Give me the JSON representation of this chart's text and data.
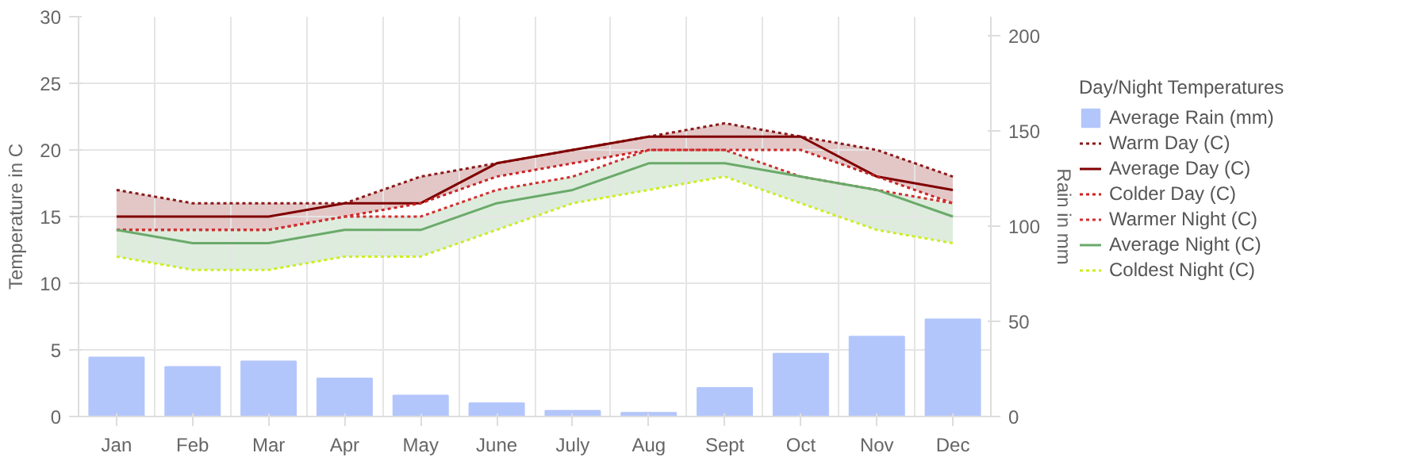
{
  "chart_data": {
    "type": "line",
    "categories": [
      "Jan",
      "Feb",
      "Mar",
      "Apr",
      "May",
      "June",
      "July",
      "Aug",
      "Sept",
      "Oct",
      "Nov",
      "Dec"
    ],
    "ylabel": "Temperature in C",
    "y2label": "Rain in mm",
    "legend_title": "Day/Night Temperatures",
    "ylim": [
      0,
      30
    ],
    "yticks": [
      0,
      5,
      10,
      15,
      20,
      25,
      30
    ],
    "y2lim": [
      0,
      210
    ],
    "y2ticks": [
      0,
      50,
      100,
      150,
      200
    ],
    "grid": true,
    "legend": "right",
    "series": [
      {
        "name": "Average Rain (mm)",
        "type": "bar",
        "axis": "y2",
        "color": "#b3c6fb",
        "values": [
          31,
          26,
          29,
          20,
          11,
          7,
          3,
          2,
          15,
          33,
          42,
          51
        ]
      },
      {
        "name": "Warm Day (C)",
        "line_style": "dotted",
        "color": "#8b1a1a",
        "values": [
          17,
          16,
          16,
          16,
          18,
          19,
          20,
          21,
          22,
          21,
          20,
          18
        ]
      },
      {
        "name": "Average Day (C)",
        "line_style": "solid",
        "color": "#800000",
        "values": [
          15,
          15,
          15,
          16,
          16,
          19,
          20,
          21,
          21,
          21,
          18,
          17
        ],
        "lower": [
          14,
          14,
          14,
          15,
          16,
          18,
          19,
          20,
          20,
          20,
          18,
          16
        ],
        "upper": [
          17,
          16,
          16,
          16,
          18,
          19,
          20,
          21,
          22,
          21,
          20,
          18
        ]
      },
      {
        "name": "Colder Day (C)",
        "line_style": "dotted",
        "color": "#cc2222",
        "values": [
          14,
          14,
          14,
          15,
          16,
          18,
          19,
          20,
          20,
          20,
          18,
          16
        ]
      },
      {
        "name": "Warmer Night (C)",
        "line_style": "dotted",
        "color": "#d03030",
        "values": [
          14,
          14,
          14,
          15,
          15,
          17,
          18,
          20,
          20,
          18,
          17,
          16
        ]
      },
      {
        "name": "Average Night (C)",
        "line_style": "solid",
        "color": "#6aaa6a",
        "values": [
          14,
          13,
          13,
          14,
          14,
          16,
          17,
          19,
          19,
          18,
          17,
          15
        ],
        "lower": [
          12,
          11,
          11,
          12,
          12,
          14,
          16,
          17,
          18,
          16,
          14,
          13
        ],
        "upper": [
          14,
          14,
          14,
          15,
          15,
          17,
          18,
          20,
          20,
          18,
          17,
          16
        ]
      },
      {
        "name": "Coldest Night (C)",
        "line_style": "dotted",
        "color": "#ccee22",
        "values": [
          12,
          11,
          11,
          12,
          12,
          14,
          16,
          17,
          18,
          16,
          14,
          13
        ]
      }
    ]
  }
}
